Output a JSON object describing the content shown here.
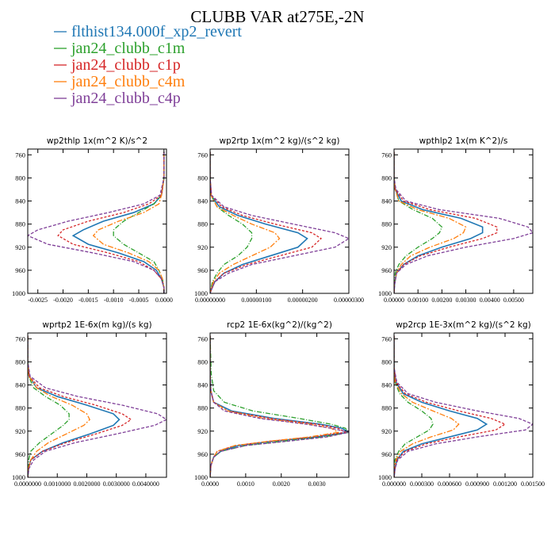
{
  "figure": {
    "title": "CLUBB VAR at275E,-2N",
    "legend": [
      {
        "name": "flthist134.000f_xp2_revert",
        "color": "#1f77b4"
      },
      {
        "name": "jan24_clubb_c1m",
        "color": "#2ca02c"
      },
      {
        "name": "jan24_clubb_c1p",
        "color": "#d62728"
      },
      {
        "name": "jan24_clubb_c4m",
        "color": "#ff7f0e"
      },
      {
        "name": "jan24_clubb_c4p",
        "color": "#7f3f98"
      }
    ]
  },
  "chart_data": [
    {
      "type": "line",
      "title": "wp2thlp   1x(m^2 K)/s^2",
      "xlim": [
        -0.0027,
        5e-05
      ],
      "ylim": [
        1000,
        750
      ],
      "yticks": [
        760,
        800,
        840,
        880,
        920,
        960,
        1000
      ],
      "xticks": [
        -0.0025,
        -0.002,
        -0.0015,
        -0.001,
        -0.0005,
        0.0
      ],
      "xtick_labels": [
        "-0.0025",
        "-0.0020",
        "-0.0015",
        "-0.0010",
        "-0.0005",
        "0.0000"
      ],
      "y": [
        755,
        800,
        830,
        845,
        860,
        875,
        890,
        900,
        915,
        930,
        945,
        960,
        975,
        990,
        1000
      ],
      "series": [
        {
          "values": [
            0.0,
            0.0,
            -5e-05,
            -0.0002,
            -0.0006,
            -0.0012,
            -0.0016,
            -0.0018,
            -0.0015,
            -0.0009,
            -0.0004,
            -0.00015,
            -5e-05,
            0.0,
            0.0
          ]
        },
        {
          "values": [
            0.0,
            0.0,
            -5e-05,
            -0.0002,
            -0.0005,
            -0.0008,
            -0.001,
            -0.001,
            -0.0008,
            -0.0005,
            -0.0002,
            -0.0001,
            -3e-05,
            0.0,
            0.0
          ]
        },
        {
          "values": [
            0.0,
            0.0,
            -5e-05,
            -0.0003,
            -0.0008,
            -0.0015,
            -0.002,
            -0.0021,
            -0.0018,
            -0.0011,
            -0.0005,
            -0.0002,
            -5e-05,
            0.0,
            0.0
          ]
        },
        {
          "values": [
            0.0,
            0.0,
            -5e-05,
            -0.0001,
            -0.0004,
            -0.0009,
            -0.0013,
            -0.0014,
            -0.0012,
            -0.0007,
            -0.0003,
            -0.0001,
            -3e-05,
            0.0,
            0.0
          ]
        },
        {
          "values": [
            0.0,
            0.0,
            -8e-05,
            -0.0004,
            -0.0011,
            -0.0019,
            -0.0025,
            -0.0027,
            -0.0023,
            -0.0014,
            -0.0006,
            -0.0002,
            -5e-05,
            0.0,
            0.0
          ]
        }
      ]
    },
    {
      "type": "line",
      "title": "wp2rtp   1x(m^2 kg)/(s^2 kg)",
      "xlim": [
        0.0,
        3e-06
      ],
      "ylim": [
        1000,
        750
      ],
      "yticks": [
        760,
        800,
        840,
        880,
        920,
        960,
        1000
      ],
      "xticks": [
        0.0,
        1e-06,
        2e-06,
        3e-06
      ],
      "xtick_labels": [
        "0.00000000",
        "0.00000100",
        "0.00000200",
        "0.00000300"
      ],
      "y": [
        755,
        800,
        830,
        850,
        865,
        880,
        895,
        905,
        920,
        935,
        950,
        965,
        980,
        995,
        1000
      ],
      "series": [
        {
          "values": [
            0.0,
            0.0,
            2e-08,
            2e-07,
            6e-07,
            1.2e-06,
            1.9e-06,
            2.1e-06,
            1.9e-06,
            1.3e-06,
            7e-07,
            3e-07,
            1e-07,
            2e-08,
            0.0
          ]
        },
        {
          "values": [
            0.0,
            0.0,
            2e-08,
            1.5e-07,
            4e-07,
            7e-07,
            9e-07,
            9e-07,
            8e-07,
            6e-07,
            3e-07,
            1.5e-07,
            5e-08,
            1e-08,
            0.0
          ]
        },
        {
          "values": [
            0.0,
            0.0,
            3e-08,
            2.5e-07,
            7e-07,
            1.4e-06,
            2.2e-06,
            2.4e-06,
            2.2e-06,
            1.5e-06,
            8e-07,
            3e-07,
            1e-07,
            2e-08,
            0.0
          ]
        },
        {
          "values": [
            0.0,
            0.0,
            2e-08,
            1.5e-07,
            5e-07,
            9e-07,
            1.4e-06,
            1.5e-06,
            1.3e-06,
            9e-07,
            5e-07,
            2e-07,
            7e-08,
            1e-08,
            0.0
          ]
        },
        {
          "values": [
            0.0,
            0.0,
            3e-08,
            3e-07,
            9e-07,
            1.8e-06,
            2.7e-06,
            3e-06,
            2.7e-06,
            1.8e-06,
            9e-07,
            4e-07,
            1e-07,
            2e-08,
            0.0
          ]
        }
      ]
    },
    {
      "type": "line",
      "title": "wpthlp2   1x(m K^2)/s",
      "xlim": [
        0.0,
        0.0058
      ],
      "ylim": [
        1000,
        750
      ],
      "yticks": [
        760,
        800,
        840,
        880,
        920,
        960,
        1000
      ],
      "xticks": [
        0.0,
        0.001,
        0.002,
        0.003,
        0.004,
        0.005
      ],
      "xtick_labels": [
        "0.00000",
        "0.00100",
        "0.00200",
        "0.00300",
        "0.00400",
        "0.00500"
      ],
      "y": [
        755,
        800,
        820,
        840,
        855,
        870,
        885,
        895,
        905,
        920,
        935,
        950,
        965,
        985,
        1000
      ],
      "series": [
        {
          "values": [
            0.0,
            0.0,
            5e-05,
            0.0003,
            0.0012,
            0.0028,
            0.0037,
            0.0037,
            0.0032,
            0.002,
            0.001,
            0.0004,
            0.0001,
            2e-05,
            0.0
          ]
        },
        {
          "values": [
            0.0,
            0.0,
            5e-05,
            0.0002,
            0.0008,
            0.0016,
            0.002,
            0.0019,
            0.0016,
            0.001,
            0.0005,
            0.0002,
            5e-05,
            1e-05,
            0.0
          ]
        },
        {
          "values": [
            0.0,
            0.0,
            5e-05,
            0.0004,
            0.0015,
            0.0034,
            0.0043,
            0.0043,
            0.0037,
            0.0023,
            0.0011,
            0.0004,
            0.0001,
            2e-05,
            0.0
          ]
        },
        {
          "values": [
            0.0,
            0.0,
            5e-05,
            0.0002,
            0.001,
            0.0023,
            0.003,
            0.0029,
            0.0025,
            0.0015,
            0.0007,
            0.0003,
            0.0001,
            1e-05,
            0.0
          ]
        },
        {
          "values": [
            0.0,
            0.0,
            8e-05,
            0.0005,
            0.0019,
            0.0044,
            0.0056,
            0.0058,
            0.005,
            0.003,
            0.0014,
            0.0005,
            0.0001,
            2e-05,
            0.0
          ]
        }
      ]
    },
    {
      "type": "line",
      "title": "wprtp2   1E-6x(m kg)/(s kg)",
      "xlim": [
        0.0,
        0.0047
      ],
      "ylim": [
        1000,
        750
      ],
      "yticks": [
        760,
        800,
        840,
        880,
        920,
        960,
        1000
      ],
      "xticks": [
        0.0,
        0.001,
        0.002,
        0.003,
        0.004
      ],
      "xtick_labels": [
        "0.0000000",
        "0.0010000",
        "0.0020000",
        "0.0030000",
        "0.0040000"
      ],
      "y": [
        755,
        800,
        825,
        845,
        860,
        875,
        890,
        900,
        910,
        925,
        940,
        955,
        970,
        985,
        1000
      ],
      "series": [
        {
          "values": [
            0.0,
            0.0,
            5e-05,
            0.0003,
            0.001,
            0.002,
            0.0029,
            0.0031,
            0.0029,
            0.0021,
            0.0012,
            0.0005,
            0.0001,
            3e-05,
            0.0
          ]
        },
        {
          "values": [
            0.0,
            0.0,
            3e-05,
            0.0002,
            0.0006,
            0.0011,
            0.0014,
            0.0014,
            0.0012,
            0.0008,
            0.0004,
            0.0001,
            3e-05,
            1e-05,
            0.0
          ]
        },
        {
          "values": [
            0.0,
            0.0,
            5e-05,
            0.0004,
            0.0012,
            0.0023,
            0.0032,
            0.0035,
            0.0032,
            0.0023,
            0.0013,
            0.0005,
            0.0001,
            3e-05,
            0.0
          ]
        },
        {
          "values": [
            0.0,
            0.0,
            4e-05,
            0.0003,
            0.0008,
            0.0015,
            0.002,
            0.0021,
            0.0019,
            0.0013,
            0.0007,
            0.0003,
            0.0001,
            2e-05,
            0.0
          ]
        },
        {
          "values": [
            0.0,
            0.0,
            8e-05,
            0.0006,
            0.0017,
            0.0032,
            0.0044,
            0.0047,
            0.0043,
            0.003,
            0.0016,
            0.0006,
            0.0002,
            4e-05,
            0.0
          ]
        }
      ]
    },
    {
      "type": "line",
      "title": "rcp2   1E-6x(kg^2)/(kg^2)",
      "xlim": [
        0.0,
        0.0039
      ],
      "ylim": [
        1000,
        750
      ],
      "yticks": [
        760,
        800,
        840,
        880,
        920,
        960,
        1000
      ],
      "xticks": [
        0.0,
        0.001,
        0.002,
        0.003
      ],
      "xtick_labels": [
        "0.0000",
        "0.0010",
        "0.0020",
        "0.0030"
      ],
      "y": [
        755,
        820,
        850,
        870,
        885,
        898,
        908,
        915,
        922,
        930,
        938,
        945,
        955,
        965,
        980,
        1000
      ],
      "series": [
        {
          "values": [
            0.0,
            0.0,
            2e-05,
            0.0001,
            0.0006,
            0.0018,
            0.0031,
            0.0037,
            0.0039,
            0.003,
            0.0017,
            0.0008,
            0.0003,
            0.0001,
            2e-05,
            0.0
          ]
        },
        {
          "values": [
            0.0,
            3e-05,
            0.0001,
            0.0004,
            0.0012,
            0.0025,
            0.0034,
            0.0038,
            0.0039,
            0.0032,
            0.002,
            0.001,
            0.0003,
            0.0001,
            2e-05,
            0.0
          ]
        },
        {
          "values": [
            0.0,
            0.0,
            2e-05,
            0.0001,
            0.0005,
            0.0017,
            0.003,
            0.0036,
            0.0038,
            0.0029,
            0.0016,
            0.0007,
            0.0002,
            0.0001,
            2e-05,
            0.0
          ]
        },
        {
          "values": [
            0.0,
            0.0,
            2e-05,
            0.0001,
            0.0005,
            0.0015,
            0.0028,
            0.0034,
            0.0036,
            0.0028,
            0.0016,
            0.0007,
            0.0002,
            0.0001,
            2e-05,
            0.0
          ]
        },
        {
          "values": [
            0.0,
            0.0,
            2e-05,
            0.0001,
            0.0004,
            0.0014,
            0.0027,
            0.0034,
            0.0039,
            0.0033,
            0.0021,
            0.001,
            0.0003,
            0.0001,
            2e-05,
            0.0
          ]
        }
      ]
    },
    {
      "type": "line",
      "title": "wp2rcp   1E-3x(m^2 kg)/(s^2 kg)",
      "xlim": [
        0.0,
        0.0015
      ],
      "ylim": [
        1000,
        750
      ],
      "yticks": [
        760,
        800,
        840,
        880,
        920,
        960,
        1000
      ],
      "xticks": [
        0.0,
        0.0003,
        0.0006,
        0.0009,
        0.0012,
        0.0015
      ],
      "xtick_labels": [
        "0.000000",
        "0.000300",
        "0.000600",
        "0.000900",
        "0.001200",
        "0.001500"
      ],
      "y": [
        755,
        810,
        835,
        855,
        870,
        885,
        898,
        908,
        918,
        930,
        942,
        955,
        970,
        985,
        1000
      ],
      "series": [
        {
          "values": [
            0.0,
            0.0,
            2e-05,
            0.0001,
            0.0003,
            0.0006,
            0.0009,
            0.001,
            0.0009,
            0.0006,
            0.0003,
            0.0001,
            3e-05,
            1e-05,
            0.0
          ]
        },
        {
          "values": [
            0.0,
            0.0,
            1e-05,
            6e-05,
            0.00015,
            0.0003,
            0.0004,
            0.00042,
            0.00038,
            0.00025,
            0.00012,
            5e-05,
            1e-05,
            0.0,
            0.0
          ]
        },
        {
          "values": [
            0.0,
            0.0,
            2e-05,
            0.00012,
            0.00035,
            0.0007,
            0.00105,
            0.0012,
            0.0011,
            0.0007,
            0.00035,
            0.00012,
            3e-05,
            1e-05,
            0.0
          ]
        },
        {
          "values": [
            0.0,
            0.0,
            1e-05,
            8e-05,
            0.0002,
            0.00042,
            0.00062,
            0.0007,
            0.00064,
            0.0004,
            0.0002,
            7e-05,
            2e-05,
            0.0,
            0.0
          ]
        },
        {
          "values": [
            0.0,
            0.0,
            3e-05,
            0.00015,
            0.00045,
            0.0009,
            0.00135,
            0.0015,
            0.00142,
            0.0009,
            0.00045,
            0.00015,
            4e-05,
            1e-05,
            0.0
          ]
        }
      ]
    }
  ]
}
